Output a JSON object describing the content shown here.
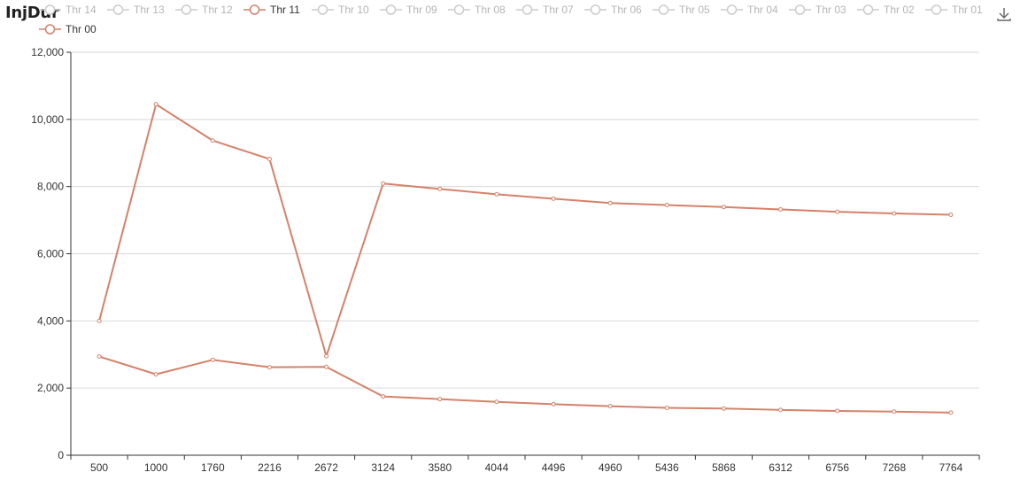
{
  "title": "InjDur",
  "toolbox": {
    "download_icon": "download-icon"
  },
  "colors": {
    "active": "#d4826a",
    "inactive": "#cccccc",
    "inactive_text": "#b5b5b5",
    "active_text": "#333333",
    "axis": "#333333",
    "grid": "#d9d9d9"
  },
  "legend": [
    {
      "name": "Thr 14",
      "active": false
    },
    {
      "name": "Thr 13",
      "active": false
    },
    {
      "name": "Thr 12",
      "active": false
    },
    {
      "name": "Thr 11",
      "active": true
    },
    {
      "name": "Thr 10",
      "active": false
    },
    {
      "name": "Thr 09",
      "active": false
    },
    {
      "name": "Thr 08",
      "active": false
    },
    {
      "name": "Thr 07",
      "active": false
    },
    {
      "name": "Thr 06",
      "active": false
    },
    {
      "name": "Thr 05",
      "active": false
    },
    {
      "name": "Thr 04",
      "active": false
    },
    {
      "name": "Thr 03",
      "active": false
    },
    {
      "name": "Thr 02",
      "active": false
    },
    {
      "name": "Thr 01",
      "active": false
    },
    {
      "name": "Thr 00",
      "active": true
    }
  ],
  "chart_data": {
    "type": "line",
    "title": "InjDur",
    "categories": [
      "500",
      "1000",
      "1760",
      "2216",
      "2672",
      "3124",
      "3580",
      "4044",
      "4496",
      "4960",
      "5436",
      "5868",
      "6312",
      "6756",
      "7268",
      "7764"
    ],
    "ylim": [
      0,
      12000
    ],
    "yticks": [
      0,
      2000,
      4000,
      6000,
      8000,
      10000,
      12000
    ],
    "ytick_labels": [
      "0",
      "2,000",
      "4,000",
      "6,000",
      "8,000",
      "10,000",
      "12,000"
    ],
    "grid": true,
    "legend_position": "top",
    "series": [
      {
        "name": "Thr 11",
        "values": [
          4000,
          10450,
          9370,
          8820,
          2950,
          8090,
          7930,
          7770,
          7640,
          7510,
          7450,
          7390,
          7320,
          7250,
          7200,
          7160
        ]
      },
      {
        "name": "Thr 00",
        "values": [
          2940,
          2410,
          2840,
          2620,
          2630,
          1750,
          1670,
          1590,
          1520,
          1460,
          1410,
          1390,
          1350,
          1320,
          1300,
          1270
        ]
      }
    ]
  }
}
